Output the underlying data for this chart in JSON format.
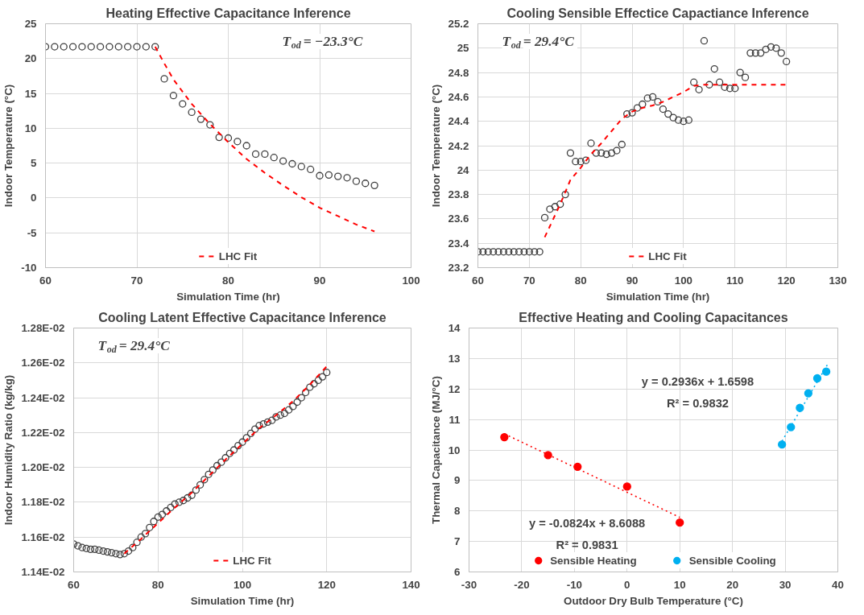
{
  "chart_data": [
    {
      "type": "scatter",
      "title": "Heating Effective Capacitance Inference",
      "xlabel": "Simulation Time (hr)",
      "ylabel": "Indoor Temperature (°C)",
      "annotations": [
        "T$_{od}$ = −23.3°C"
      ],
      "xlim": [
        60,
        100
      ],
      "xticks": [
        60,
        70,
        80,
        90,
        100
      ],
      "ylim": [
        -10,
        25
      ],
      "yticks": [
        -10,
        -5,
        0,
        5,
        10,
        15,
        20,
        25
      ],
      "grid": true,
      "legend": "bottom",
      "series": [
        {
          "marker": "circle",
          "color": "#404040",
          "x": [
            60,
            61,
            62,
            63,
            64,
            65,
            66,
            67,
            68,
            69,
            70,
            71,
            72,
            73,
            74,
            75,
            76,
            77,
            78,
            79,
            80,
            81,
            82,
            83,
            84,
            85,
            86,
            87,
            88,
            89,
            90,
            91,
            92,
            93,
            94,
            95,
            96
          ],
          "values": [
            21.7,
            21.7,
            21.7,
            21.7,
            21.7,
            21.7,
            21.7,
            21.7,
            21.7,
            21.7,
            21.7,
            21.7,
            21.7,
            17.1,
            14.7,
            13.5,
            12.3,
            11.3,
            10.5,
            8.7,
            8.6,
            8.1,
            7.5,
            6.3,
            6.3,
            5.8,
            5.3,
            4.9,
            4.5,
            4.1,
            3.2,
            3.3,
            3.1,
            2.9,
            2.4,
            2.1,
            1.8
          ]
        },
        {
          "type": "line",
          "name": "LHC Fit",
          "color": "#ff0000",
          "line_style": "dashed",
          "x": [
            72,
            73,
            74,
            76,
            78,
            80,
            82,
            84,
            86,
            88,
            90,
            92,
            94,
            96
          ],
          "values": [
            21.7,
            19.3,
            17.0,
            13.5,
            10.6,
            8.0,
            5.6,
            3.6,
            1.8,
            0.1,
            -1.4,
            -2.6,
            -3.8,
            -4.8
          ]
        }
      ]
    },
    {
      "type": "scatter",
      "title": "Cooling Sensible Effectice Capactiance Inference",
      "xlabel": "Simulation Time (hr)",
      "ylabel": "Indoor Temperature (°C)",
      "annotations": [
        "T$_{od}$ = 29.4°C"
      ],
      "xlim": [
        60,
        130
      ],
      "xticks": [
        60,
        70,
        80,
        90,
        100,
        110,
        120,
        130
      ],
      "ylim": [
        23.2,
        25.2
      ],
      "yticks": [
        23.2,
        23.4,
        23.6,
        23.8,
        24,
        24.2,
        24.4,
        24.6,
        24.8,
        25,
        25.2
      ],
      "grid": true,
      "legend": "bottom",
      "series": [
        {
          "marker": "circle",
          "color": "#404040",
          "x": [
            60,
            61,
            62,
            63,
            64,
            65,
            66,
            67,
            68,
            69,
            70,
            71,
            72,
            73,
            74,
            75,
            76,
            77,
            78,
            79,
            80,
            81,
            82,
            83,
            84,
            85,
            86,
            87,
            88,
            89,
            90,
            91,
            92,
            93,
            94,
            95,
            96,
            97,
            98,
            99,
            100,
            101,
            102,
            103,
            104,
            105,
            106,
            107,
            108,
            109,
            110,
            111,
            112,
            113,
            114,
            115,
            116,
            117,
            118,
            119,
            120
          ],
          "values": [
            23.33,
            23.33,
            23.33,
            23.33,
            23.33,
            23.33,
            23.33,
            23.33,
            23.33,
            23.33,
            23.33,
            23.33,
            23.33,
            23.61,
            23.68,
            23.7,
            23.72,
            23.8,
            24.14,
            24.07,
            24.07,
            24.08,
            24.22,
            24.14,
            24.14,
            24.13,
            24.14,
            24.16,
            24.21,
            24.46,
            24.47,
            24.51,
            24.54,
            24.59,
            24.6,
            24.56,
            24.5,
            24.46,
            24.43,
            24.41,
            24.4,
            24.41,
            24.72,
            24.66,
            25.06,
            24.7,
            24.83,
            24.72,
            24.68,
            24.67,
            24.67,
            24.8,
            24.76,
            24.96,
            24.96,
            24.96,
            24.99,
            25.01,
            25.0,
            24.96,
            24.89
          ]
        },
        {
          "type": "line",
          "name": "LHC Fit",
          "color": "#ff0000",
          "line_style": "dashed",
          "x": [
            73,
            76,
            78,
            80,
            82,
            84,
            86,
            88,
            90,
            92,
            94,
            96,
            98,
            100,
            102,
            104,
            120
          ],
          "values": [
            23.45,
            23.72,
            23.92,
            24.02,
            24.13,
            24.22,
            24.32,
            24.42,
            24.48,
            24.51,
            24.53,
            24.56,
            24.6,
            24.64,
            24.69,
            24.7,
            24.7
          ]
        }
      ]
    },
    {
      "type": "scatter",
      "title": "Cooling Latent Effective Capacitance Inference",
      "xlabel": "Simulation Time (hr)",
      "ylabel": "Indoor Humidity Ratio (kg/kg)",
      "annotations": [
        "T$_{od}$ = 29.4°C"
      ],
      "xlim": [
        60,
        140
      ],
      "xticks": [
        60,
        80,
        100,
        120,
        140
      ],
      "ylim": [
        0.0114,
        0.0128
      ],
      "yticks": [
        {
          "value": 0.0114,
          "label": "1.14E-02"
        },
        {
          "value": 0.0116,
          "label": "1.16E-02"
        },
        {
          "value": 0.0118,
          "label": "1.18E-02"
        },
        {
          "value": 0.012,
          "label": "1.20E-02"
        },
        {
          "value": 0.0122,
          "label": "1.22E-02"
        },
        {
          "value": 0.0124,
          "label": "1.24E-02"
        },
        {
          "value": 0.0126,
          "label": "1.26E-02"
        },
        {
          "value": 0.0128,
          "label": "1.28E-02"
        }
      ],
      "grid": true,
      "legend": "bottom",
      "series": [
        {
          "marker": "circle",
          "color": "#404040",
          "x": [
            60,
            61,
            62,
            63,
            64,
            65,
            66,
            67,
            68,
            69,
            70,
            71,
            72,
            73,
            74,
            75,
            76,
            77,
            78,
            79,
            80,
            81,
            82,
            83,
            84,
            85,
            86,
            87,
            88,
            89,
            90,
            91,
            92,
            93,
            94,
            95,
            96,
            97,
            98,
            99,
            100,
            101,
            102,
            103,
            104,
            105,
            106,
            107,
            108,
            109,
            110,
            111,
            112,
            113,
            114,
            115,
            116,
            117,
            118,
            119,
            120
          ],
          "values": [
            0.01156,
            0.01155,
            0.01154,
            0.011535,
            0.01153,
            0.01153,
            0.011525,
            0.01152,
            0.011515,
            0.01151,
            0.011505,
            0.0115,
            0.011505,
            0.01152,
            0.01154,
            0.01157,
            0.0116,
            0.01162,
            0.011655,
            0.01169,
            0.011715,
            0.01173,
            0.01175,
            0.01177,
            0.01179,
            0.0118,
            0.01181,
            0.011825,
            0.01184,
            0.01187,
            0.0119,
            0.01193,
            0.01196,
            0.011985,
            0.01201,
            0.01203,
            0.012055,
            0.01208,
            0.0121,
            0.012125,
            0.012145,
            0.01217,
            0.012195,
            0.01222,
            0.01224,
            0.01225,
            0.01226,
            0.01227,
            0.01229,
            0.0123,
            0.01231,
            0.01233,
            0.01235,
            0.012375,
            0.0124,
            0.01243,
            0.01246,
            0.01248,
            0.0125,
            0.01252,
            0.012545
          ]
        },
        {
          "type": "line",
          "name": "LHC Fit",
          "color": "#ff0000",
          "line_style": "dashed",
          "x": [
            72,
            76,
            80,
            84,
            88,
            92,
            96,
            100,
            104,
            108,
            112,
            116,
            120
          ],
          "values": [
            0.011505,
            0.01159,
            0.01168,
            0.01177,
            0.011855,
            0.01195,
            0.012045,
            0.012135,
            0.012225,
            0.0123,
            0.01238,
            0.012475,
            0.01258
          ]
        }
      ]
    },
    {
      "type": "scatter",
      "title": "Effective Heating and Cooling Capacitances",
      "xlabel": "Outdoor Dry Bulb Temperature (°C)",
      "ylabel": "Thermal Capacitance (MJ/°C)",
      "annotations": [
        "y = -0.0824x + 8.6088",
        "R² = 0.9831",
        "y = 0.2936x + 1.6598",
        "R² = 0.9832"
      ],
      "xlim": [
        -30,
        40
      ],
      "xticks": [
        -30,
        -20,
        -10,
        0,
        10,
        20,
        30,
        40
      ],
      "ylim": [
        6,
        14
      ],
      "yticks": [
        6,
        7,
        8,
        9,
        10,
        11,
        12,
        13,
        14
      ],
      "grid": true,
      "legend": "bottom",
      "series": [
        {
          "marker": "circle",
          "name": "Sensible Heating",
          "color": "#ff0000",
          "x": [
            -23.3,
            -15,
            -9.4,
            0,
            10
          ],
          "values": [
            10.42,
            9.83,
            9.45,
            8.8,
            7.62
          ]
        },
        {
          "marker": "circle",
          "name": "Sensible Cooling",
          "color": "#00b0f0",
          "x": [
            29.4,
            31.1,
            32.8,
            34.4,
            36.1,
            37.8
          ],
          "values": [
            10.18,
            10.75,
            11.38,
            11.86,
            12.35,
            12.57
          ]
        },
        {
          "type": "line",
          "color": "#ff0000",
          "line_style": "dotted",
          "x": [
            -23.3,
            10
          ],
          "values": [
            10.53,
            7.79
          ]
        },
        {
          "type": "line",
          "color": "#00b0f0",
          "line_style": "dotted",
          "x": [
            29.4,
            38
          ],
          "values": [
            10.29,
            12.79
          ]
        }
      ]
    }
  ]
}
